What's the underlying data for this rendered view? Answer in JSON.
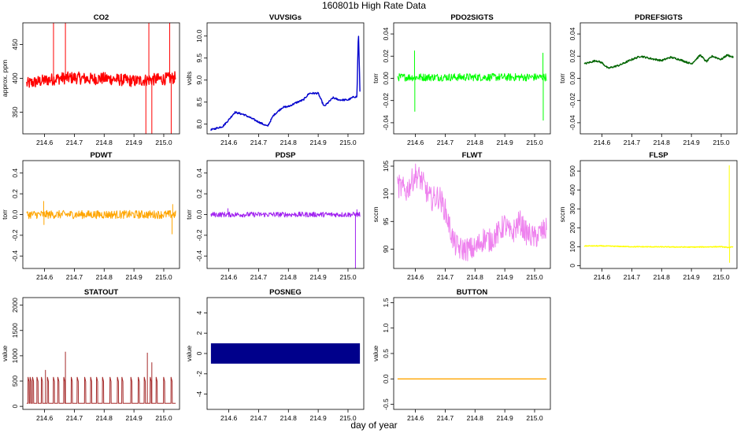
{
  "figure": {
    "title": "160801b   High Rate Data",
    "xlabel": "day of year"
  },
  "chart_data": [
    {
      "id": "co2",
      "type": "line",
      "title": "CO2",
      "ylabel": "approx. ppm",
      "color": "#ff0000",
      "xlim": [
        214.535,
        215.045
      ],
      "ylim": [
        318,
        482
      ],
      "yticks": [
        350,
        400,
        450
      ],
      "xticks": [
        214.6,
        214.7,
        214.8,
        214.9,
        215.0
      ],
      "series": [
        {
          "name": "CO2",
          "x": [
            214.54,
            214.6,
            214.65,
            214.7,
            214.75,
            214.8,
            214.85,
            214.9,
            214.95,
            215.0,
            215.04
          ],
          "values": [
            392,
            397,
            400,
            401,
            399,
            400,
            398,
            396,
            398,
            399,
            401
          ]
        }
      ],
      "spikes": [
        {
          "x": 214.63,
          "to": 482
        },
        {
          "x": 214.67,
          "to": 482
        },
        {
          "x": 214.94,
          "to": 318
        },
        {
          "x": 214.95,
          "to": 482
        },
        {
          "x": 214.96,
          "to": 318
        },
        {
          "x": 215.02,
          "to": 482
        },
        {
          "x": 215.025,
          "to": 318
        }
      ],
      "noise": 9
    },
    {
      "id": "vuvsigs",
      "type": "line",
      "title": "VUVSIGs",
      "ylabel": "volts",
      "color": "#0000cd",
      "xlim": [
        214.535,
        215.045
      ],
      "ylim": [
        7.78,
        10.3
      ],
      "yticks": [
        8.0,
        8.5,
        9.0,
        9.5,
        10.0
      ],
      "xticks": [
        214.6,
        214.7,
        214.8,
        214.9,
        215.0
      ],
      "series": [
        {
          "name": "VUVSIGs",
          "x": [
            214.54,
            214.58,
            214.6,
            214.62,
            214.65,
            214.68,
            214.7,
            214.73,
            214.75,
            214.78,
            214.8,
            214.83,
            214.85,
            214.87,
            214.9,
            214.92,
            214.95,
            214.97,
            215.0,
            215.02,
            215.03,
            215.035,
            215.04
          ],
          "values": [
            7.87,
            7.95,
            8.1,
            8.27,
            8.22,
            8.12,
            8.05,
            7.95,
            8.2,
            8.38,
            8.4,
            8.5,
            8.55,
            8.7,
            8.7,
            8.4,
            8.6,
            8.55,
            8.55,
            8.62,
            8.62,
            10.15,
            8.75
          ]
        }
      ],
      "noise": 0.02
    },
    {
      "id": "pdo2sigts",
      "type": "line",
      "title": "PDO2SIGTS",
      "ylabel": "torr",
      "color": "#00ff00",
      "xlim": [
        214.535,
        215.045
      ],
      "ylim": [
        -0.05,
        0.05
      ],
      "yticks": [
        -0.04,
        -0.02,
        0.0,
        0.02,
        0.04
      ],
      "xticks": [
        214.6,
        214.7,
        214.8,
        214.9,
        215.0
      ],
      "series": [
        {
          "name": "PDO2SIGTS",
          "x": [
            214.54,
            215.04
          ],
          "values": [
            0.001,
            0.001
          ]
        }
      ],
      "spikes": [
        {
          "x": 214.597,
          "to": 0.025
        },
        {
          "x": 214.598,
          "to": -0.03
        },
        {
          "x": 215.028,
          "to": 0.023
        },
        {
          "x": 215.029,
          "to": -0.038
        }
      ],
      "noise": 0.0035
    },
    {
      "id": "pdrefsigts",
      "type": "line",
      "title": "PDREFSIGTS",
      "ylabel": "torr",
      "color": "#006400",
      "xlim": [
        214.535,
        215.045
      ],
      "ylim": [
        -0.05,
        0.05
      ],
      "yticks": [
        -0.04,
        -0.02,
        0.0,
        0.02,
        0.04
      ],
      "xticks": [
        214.6,
        214.7,
        214.8,
        214.9,
        215.0
      ],
      "series": [
        {
          "name": "PDREFSIGTS",
          "x": [
            214.54,
            214.58,
            214.6,
            214.62,
            214.66,
            214.7,
            214.73,
            214.76,
            214.8,
            214.83,
            214.86,
            214.9,
            214.93,
            214.95,
            214.97,
            215.0,
            215.02,
            215.04
          ],
          "values": [
            0.013,
            0.016,
            0.014,
            0.009,
            0.012,
            0.017,
            0.02,
            0.018,
            0.016,
            0.019,
            0.017,
            0.013,
            0.021,
            0.015,
            0.02,
            0.017,
            0.021,
            0.019
          ]
        }
      ],
      "noise": 0.0008
    },
    {
      "id": "pdwt",
      "type": "line",
      "title": "PDWT",
      "ylabel": "torr",
      "color": "#ffa500",
      "xlim": [
        214.535,
        215.045
      ],
      "ylim": [
        -0.52,
        0.52
      ],
      "yticks": [
        -0.4,
        -0.2,
        0.0,
        0.2,
        0.4
      ],
      "xticks": [
        214.6,
        214.7,
        214.8,
        214.9,
        215.0
      ],
      "series": [
        {
          "name": "PDWT",
          "x": [
            214.54,
            215.04
          ],
          "values": [
            0.0,
            0.0
          ]
        }
      ],
      "spikes": [
        {
          "x": 214.597,
          "to": 0.13
        },
        {
          "x": 214.598,
          "to": -0.1
        },
        {
          "x": 215.028,
          "to": -0.19
        },
        {
          "x": 215.03,
          "to": 0.1
        }
      ],
      "noise": 0.04
    },
    {
      "id": "pdsp",
      "type": "line",
      "title": "PDSP",
      "ylabel": "torr",
      "color": "#a020f0",
      "xlim": [
        214.535,
        215.045
      ],
      "ylim": [
        -0.52,
        0.52
      ],
      "yticks": [
        -0.4,
        -0.2,
        0.0,
        0.2,
        0.4
      ],
      "xticks": [
        214.6,
        214.7,
        214.8,
        214.9,
        215.0
      ],
      "series": [
        {
          "name": "PDSP",
          "x": [
            214.54,
            215.04
          ],
          "values": [
            0.0,
            0.0
          ]
        }
      ],
      "spikes": [
        {
          "x": 214.597,
          "to": 0.06
        },
        {
          "x": 215.025,
          "to": -0.52
        },
        {
          "x": 215.03,
          "to": 0.05
        }
      ],
      "noise": 0.025
    },
    {
      "id": "flwt",
      "type": "line",
      "title": "FLWT",
      "ylabel": "sccm",
      "color": "#ee82ee",
      "xlim": [
        214.535,
        215.045
      ],
      "ylim": [
        86.5,
        106
      ],
      "yticks": [
        90,
        95,
        100,
        105
      ],
      "xticks": [
        214.6,
        214.7,
        214.8,
        214.9,
        215.0
      ],
      "series": [
        {
          "name": "FLWT",
          "x": [
            214.54,
            214.57,
            214.6,
            214.62,
            214.65,
            214.68,
            214.7,
            214.73,
            214.75,
            214.8,
            214.83,
            214.85,
            214.88,
            214.9,
            214.92,
            214.95,
            214.97,
            215.0,
            215.02,
            215.04
          ],
          "values": [
            101.5,
            100.5,
            103.5,
            102.5,
            99,
            99.5,
            97,
            91,
            90,
            90,
            92,
            91.5,
            93,
            94.5,
            92.5,
            95,
            93,
            92,
            93,
            93.5
          ]
        }
      ],
      "noise": 2.2
    },
    {
      "id": "flsp",
      "type": "line",
      "title": "FLSP",
      "ylabel": "sccm",
      "color": "#ffff00",
      "xlim": [
        214.535,
        215.045
      ],
      "ylim": [
        -15,
        555
      ],
      "yticks": [
        0,
        100,
        200,
        300,
        400,
        500
      ],
      "xticks": [
        214.6,
        214.7,
        214.8,
        214.9,
        215.0
      ],
      "series": [
        {
          "name": "FLSP",
          "x": [
            214.54,
            214.6,
            214.7,
            214.8,
            214.9,
            215.0,
            215.02,
            215.04
          ],
          "values": [
            104,
            104,
            100,
            99,
            98,
            100,
            96,
            98
          ]
        }
      ],
      "spikes": [
        {
          "x": 215.027,
          "to": 530
        },
        {
          "x": 215.028,
          "to": 15
        }
      ],
      "noise": 2
    },
    {
      "id": "statout",
      "type": "line",
      "title": "STATOUT",
      "ylabel": "value",
      "color": "#a52a2a",
      "xlim": [
        214.535,
        215.045
      ],
      "ylim": [
        -60,
        2150
      ],
      "yticks": [
        0,
        500,
        1000,
        1500,
        2000
      ],
      "xticks": [
        214.6,
        214.7,
        214.8,
        214.9,
        215.0
      ],
      "series": [
        {
          "name": "STATOUT",
          "x": [
            214.54,
            215.04
          ],
          "values": [
            60,
            60
          ]
        }
      ],
      "pulses": [
        214.545,
        214.552,
        214.56,
        214.575,
        214.59,
        214.61,
        214.63,
        214.645,
        214.665,
        214.69,
        214.71,
        214.735,
        214.755,
        214.775,
        214.795,
        214.82,
        214.845,
        214.86,
        214.89,
        214.915,
        214.935,
        214.955,
        214.975,
        215.0,
        215.025
      ],
      "pulse_height": 580,
      "tall": [
        {
          "x": 214.67,
          "to": 1080
        },
        {
          "x": 214.945,
          "to": 1060
        },
        {
          "x": 214.96,
          "to": 870
        },
        {
          "x": 214.603,
          "to": 720
        }
      ],
      "noise": 0
    },
    {
      "id": "posneg",
      "type": "area",
      "title": "POSNEG",
      "ylabel": "value",
      "color": "#00008b",
      "xlim": [
        214.535,
        215.045
      ],
      "ylim": [
        -5.5,
        5.5
      ],
      "yticks": [
        -4,
        -2,
        0,
        2,
        4
      ],
      "xticks": [
        214.6,
        214.7,
        214.8,
        214.9,
        215.0
      ],
      "series": [
        {
          "name": "POSNEG",
          "x": [
            214.54,
            215.04
          ],
          "values": [
            1,
            -1
          ]
        }
      ]
    },
    {
      "id": "button",
      "type": "line",
      "title": "BUTTON",
      "ylabel": "value",
      "color": "#ffa500",
      "xlim": [
        214.535,
        215.045
      ],
      "ylim": [
        -0.6,
        1.6
      ],
      "yticks": [
        -0.5,
        0.0,
        0.5,
        1.0,
        1.5
      ],
      "xticks": [
        214.6,
        214.7,
        214.8,
        214.9,
        215.0
      ],
      "series": [
        {
          "name": "BUTTON",
          "x": [
            214.54,
            215.04
          ],
          "values": [
            0,
            0
          ]
        }
      ]
    }
  ]
}
